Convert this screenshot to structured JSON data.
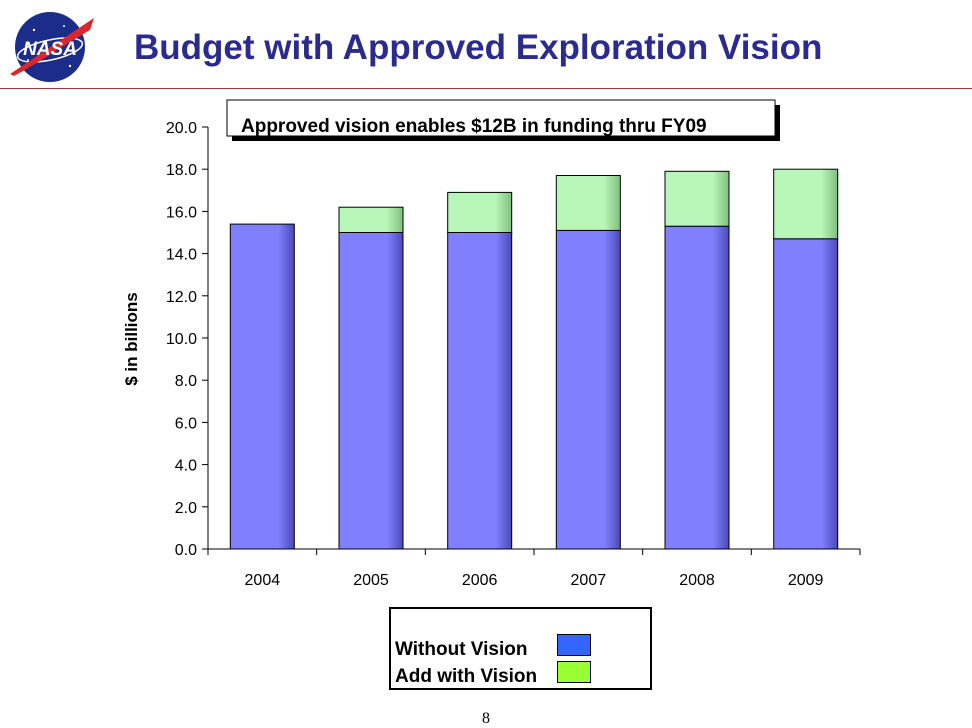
{
  "header": {
    "title": "Budget with Approved Exploration Vision",
    "logo_text": "NASA"
  },
  "chart_data": {
    "type": "bar",
    "stacked": true,
    "categories": [
      "2004",
      "2005",
      "2006",
      "2007",
      "2008",
      "2009"
    ],
    "series": [
      {
        "name": "Without Vision",
        "values": [
          15.4,
          15.0,
          15.0,
          15.1,
          15.3,
          14.7
        ],
        "color": "#8080ff",
        "legend_color": "#3366ff"
      },
      {
        "name": "Add with Vision",
        "values": [
          0.0,
          1.2,
          1.9,
          2.6,
          2.6,
          3.3
        ],
        "color": "#b8f5b8",
        "legend_color": "#99ff33"
      }
    ],
    "ylabel": "$ in billions",
    "ylim": [
      0,
      20
    ],
    "yticks": [
      "0.0",
      "2.0",
      "4.0",
      "6.0",
      "8.0",
      "10.0",
      "12.0",
      "14.0",
      "16.0",
      "18.0",
      "20.0"
    ],
    "grid": false,
    "annotation": "Approved vision enables $12B in funding thru FY09",
    "legend_position": "bottom"
  },
  "footer": {
    "page_number": "8"
  }
}
